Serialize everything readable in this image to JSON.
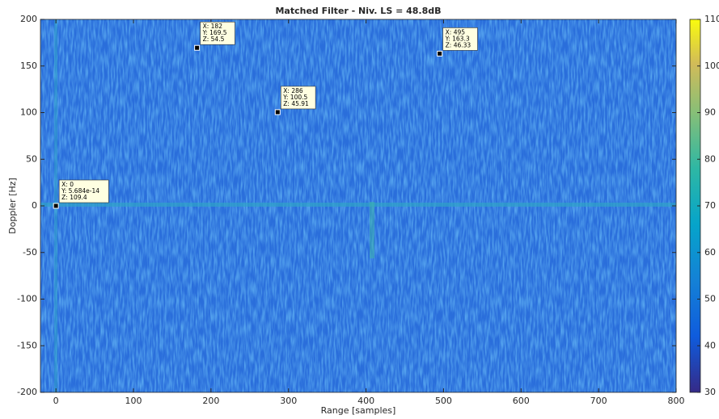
{
  "chart_data": {
    "type": "heatmap",
    "title": "Matched Filter - Niv. LS = 48.8dB",
    "xlabel": "Range [samples]",
    "ylabel": "Doppler [Hz]",
    "xlim": [
      -20,
      800
    ],
    "xticks": [
      0,
      100,
      200,
      300,
      400,
      500,
      600,
      700,
      800
    ],
    "ylim": [
      -200,
      200
    ],
    "yticks": [
      -200,
      -150,
      -100,
      -50,
      0,
      50,
      100,
      150,
      200
    ],
    "clim": [
      30,
      110
    ],
    "cticks": [
      30,
      40,
      50,
      60,
      70,
      80,
      90,
      100,
      110
    ],
    "datatips": [
      {
        "x": 0,
        "y": 5.684e-14,
        "z": 109.4,
        "labels": [
          "X: 0",
          "Y: 5.684e-14",
          "Z: 109.4"
        ]
      },
      {
        "x": 182,
        "y": 169.5,
        "z": 54.5,
        "labels": [
          "X: 182",
          "Y: 169.5",
          "Z: 54.5"
        ]
      },
      {
        "x": 286,
        "y": 100.5,
        "z": 45.91,
        "labels": [
          "X: 286",
          "Y: 100.5",
          "Z: 45.91"
        ]
      },
      {
        "x": 495,
        "y": 163.3,
        "z": 46.33,
        "labels": [
          "X: 495",
          "Y: 163.3",
          "Z: 46.33"
        ]
      }
    ]
  }
}
